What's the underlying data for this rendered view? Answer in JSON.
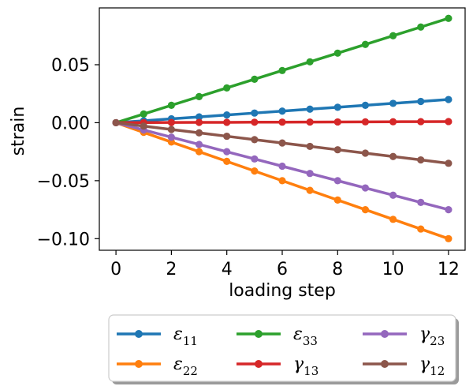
{
  "chart_data": {
    "type": "line",
    "title": "",
    "xlabel": "loading step",
    "ylabel": "strain",
    "xlim": [
      -0.6,
      12.6
    ],
    "ylim": [
      -0.11,
      0.099
    ],
    "xticks": [
      0,
      2,
      4,
      6,
      8,
      10,
      12
    ],
    "xtick_labels": [
      "0",
      "2",
      "4",
      "6",
      "8",
      "10",
      "12"
    ],
    "yticks": [
      0.05,
      0.0,
      -0.05,
      -0.1
    ],
    "ytick_labels": [
      "0.05",
      "0.00",
      "−0.05",
      "−0.10"
    ],
    "grid": false,
    "legend_position": "below",
    "legend_columns": 3,
    "x": [
      0,
      1,
      2,
      3,
      4,
      5,
      6,
      7,
      8,
      9,
      10,
      11,
      12
    ],
    "series": [
      {
        "name": "ε",
        "sub": "11",
        "color": "#1f77b4",
        "values": [
          0,
          0.00167,
          0.00333,
          0.005,
          0.00667,
          0.00833,
          0.01,
          0.01167,
          0.01333,
          0.015,
          0.01667,
          0.01833,
          0.02
        ]
      },
      {
        "name": "ε",
        "sub": "22",
        "color": "#ff7f0e",
        "values": [
          0,
          -0.00833,
          -0.01667,
          -0.025,
          -0.03333,
          -0.04167,
          -0.05,
          -0.05833,
          -0.06667,
          -0.075,
          -0.08333,
          -0.09167,
          -0.1
        ]
      },
      {
        "name": "ε",
        "sub": "33",
        "color": "#2ca02c",
        "values": [
          0,
          0.0075,
          0.015,
          0.0225,
          0.03,
          0.0375,
          0.045,
          0.0525,
          0.06,
          0.0675,
          0.075,
          0.0825,
          0.09
        ]
      },
      {
        "name": "γ",
        "sub": "13",
        "color": "#d62728",
        "values": [
          0,
          8e-05,
          0.00017,
          0.00025,
          0.00033,
          0.00042,
          0.0005,
          0.00058,
          0.00067,
          0.00075,
          0.00083,
          0.00092,
          0.001
        ]
      },
      {
        "name": "γ",
        "sub": "23",
        "color": "#9467bd",
        "values": [
          0,
          -0.00625,
          -0.0125,
          -0.01875,
          -0.025,
          -0.03125,
          -0.0375,
          -0.04375,
          -0.05,
          -0.05625,
          -0.0625,
          -0.06875,
          -0.075
        ]
      },
      {
        "name": "γ",
        "sub": "12",
        "color": "#8c564b",
        "values": [
          0,
          -0.00292,
          -0.00583,
          -0.00875,
          -0.01167,
          -0.01458,
          -0.0175,
          -0.02042,
          -0.02333,
          -0.02625,
          -0.02917,
          -0.03208,
          -0.035
        ]
      }
    ]
  }
}
